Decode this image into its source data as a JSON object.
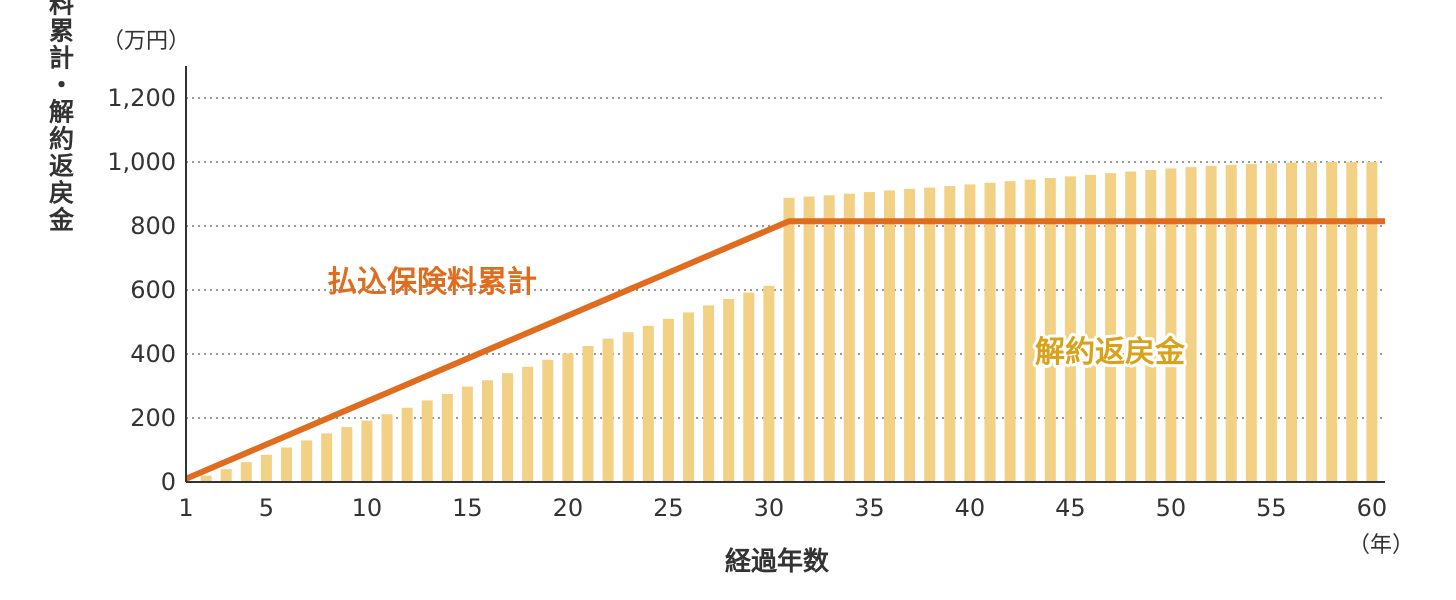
{
  "chart_data": {
    "type": "bar",
    "title": "",
    "y_unit_label": "（万円）",
    "x_unit_label": "（年）",
    "xlabel": "経過年数",
    "ylabel": "払込保険料累計・解約返戻金",
    "ylim": [
      0,
      1250
    ],
    "y_ticks": [
      0,
      200,
      400,
      600,
      800,
      1000,
      1200
    ],
    "y_tick_labels": [
      "0",
      "200",
      "400",
      "600",
      "800",
      "1,000",
      "1,200"
    ],
    "x_ticks": [
      1,
      5,
      10,
      15,
      20,
      25,
      30,
      35,
      40,
      45,
      50,
      55,
      60
    ],
    "x_tick_labels": [
      "1",
      "5",
      "10",
      "15",
      "20",
      "25",
      "30",
      "35",
      "40",
      "45",
      "50",
      "55",
      "60"
    ],
    "grid": "horizontal-dotted",
    "series": [
      {
        "name": "解約返戻金",
        "type": "bar",
        "color": "#f2d084",
        "label_color": "#d9a21a",
        "x": [
          2,
          3,
          4,
          5,
          6,
          7,
          8,
          9,
          10,
          11,
          12,
          13,
          14,
          15,
          16,
          17,
          18,
          19,
          20,
          21,
          22,
          23,
          24,
          25,
          26,
          27,
          28,
          29,
          30,
          31,
          32,
          33,
          34,
          35,
          36,
          37,
          38,
          39,
          40,
          41,
          42,
          43,
          44,
          45,
          46,
          47,
          48,
          49,
          50,
          51,
          52,
          53,
          54,
          55,
          56,
          57,
          58,
          59,
          60
        ],
        "values": [
          20,
          40,
          62,
          85,
          108,
          130,
          152,
          172,
          192,
          212,
          232,
          255,
          275,
          298,
          318,
          340,
          360,
          382,
          402,
          425,
          448,
          468,
          488,
          510,
          530,
          552,
          572,
          592,
          613,
          888,
          892,
          896,
          901,
          906,
          911,
          916,
          920,
          925,
          930,
          935,
          940,
          945,
          950,
          955,
          960,
          965,
          970,
          975,
          980,
          984,
          988,
          991,
          994,
          996,
          998,
          999,
          1000,
          1000,
          1000
        ]
      },
      {
        "name": "払込保険料累計",
        "type": "line",
        "color": "#e06d1f",
        "points": [
          [
            1,
            10
          ],
          [
            31,
            815
          ],
          [
            61,
            815
          ]
        ]
      }
    ],
    "annotations": [
      {
        "text": "払込保険料累計",
        "series": "払込保険料累計"
      },
      {
        "text": "解約返戻金",
        "series": "解約返戻金"
      }
    ]
  }
}
